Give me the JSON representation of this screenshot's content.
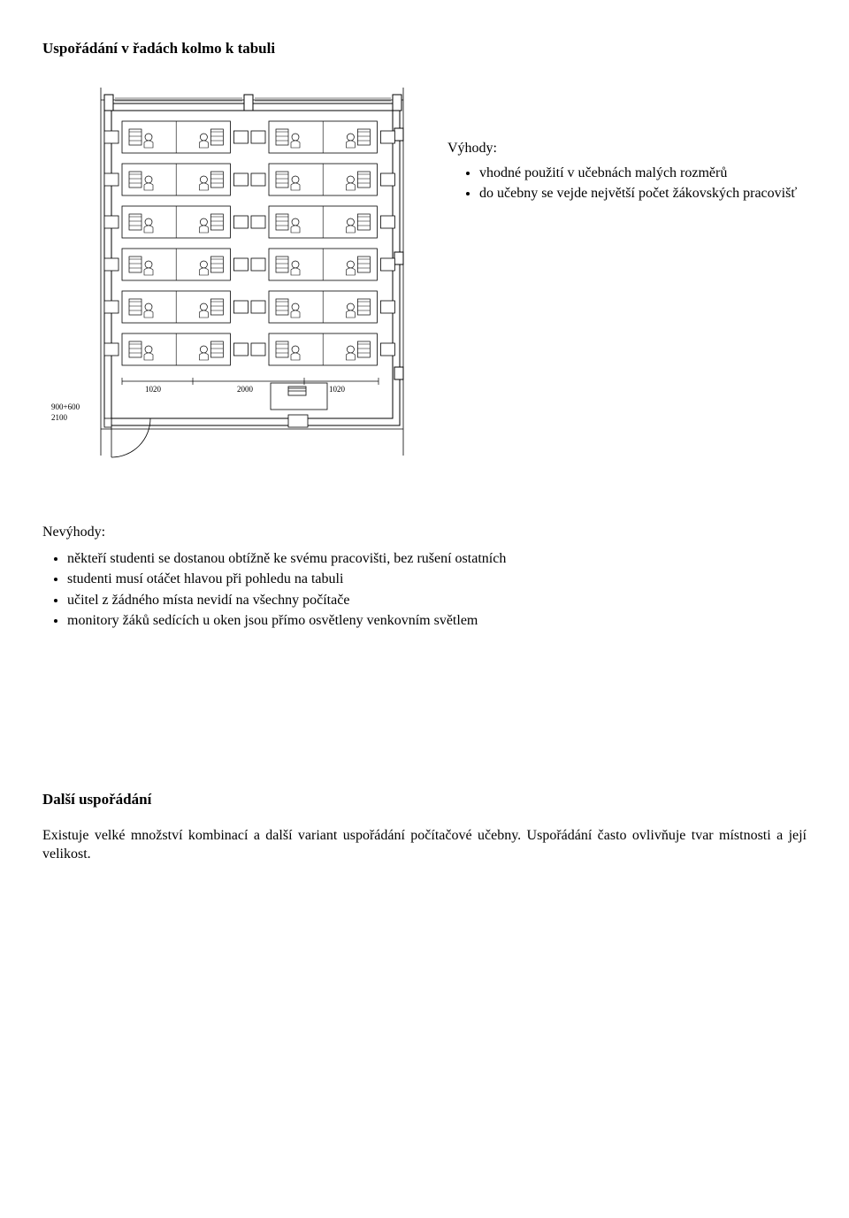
{
  "heading": "Uspořádání v řadách kolmo k tabuli",
  "advantages": {
    "label": "Výhody:",
    "items": [
      "vhodné použití v učebnách malých rozměrů",
      "do učebny se vejde největší počet žákovských pracovišť"
    ]
  },
  "disadvantages": {
    "label": "Nevýhody:",
    "items": [
      "někteří studenti se dostanou obtížně ke svému pracovišti, bez rušení ostatních",
      "studenti musí otáčet hlavou při pohledu na tabuli",
      "učitel z žádného místa nevidí na všechny počítače",
      "monitory žáků sedících u oken jsou přímo osvětleny venkovním světlem"
    ]
  },
  "further": {
    "heading": "Další uspořádání",
    "text": "Existuje velké množství kombinací a další variant uspořádání počítačové učebny. Uspořádání často ovlivňuje tvar místnosti a její velikost."
  },
  "plan": {
    "dim_left_top": "900+600",
    "dim_left_bottom": "2100",
    "dim_b1": "1020",
    "dim_b2": "2000",
    "dim_b3": "1020",
    "wall_stroke": "#000000",
    "wall_stroke_w": 1,
    "desk_stroke": "#000000",
    "fill": "#ffffff",
    "text_size": 9,
    "rows": 6,
    "cols_per_block": 2,
    "blocks": 2
  }
}
